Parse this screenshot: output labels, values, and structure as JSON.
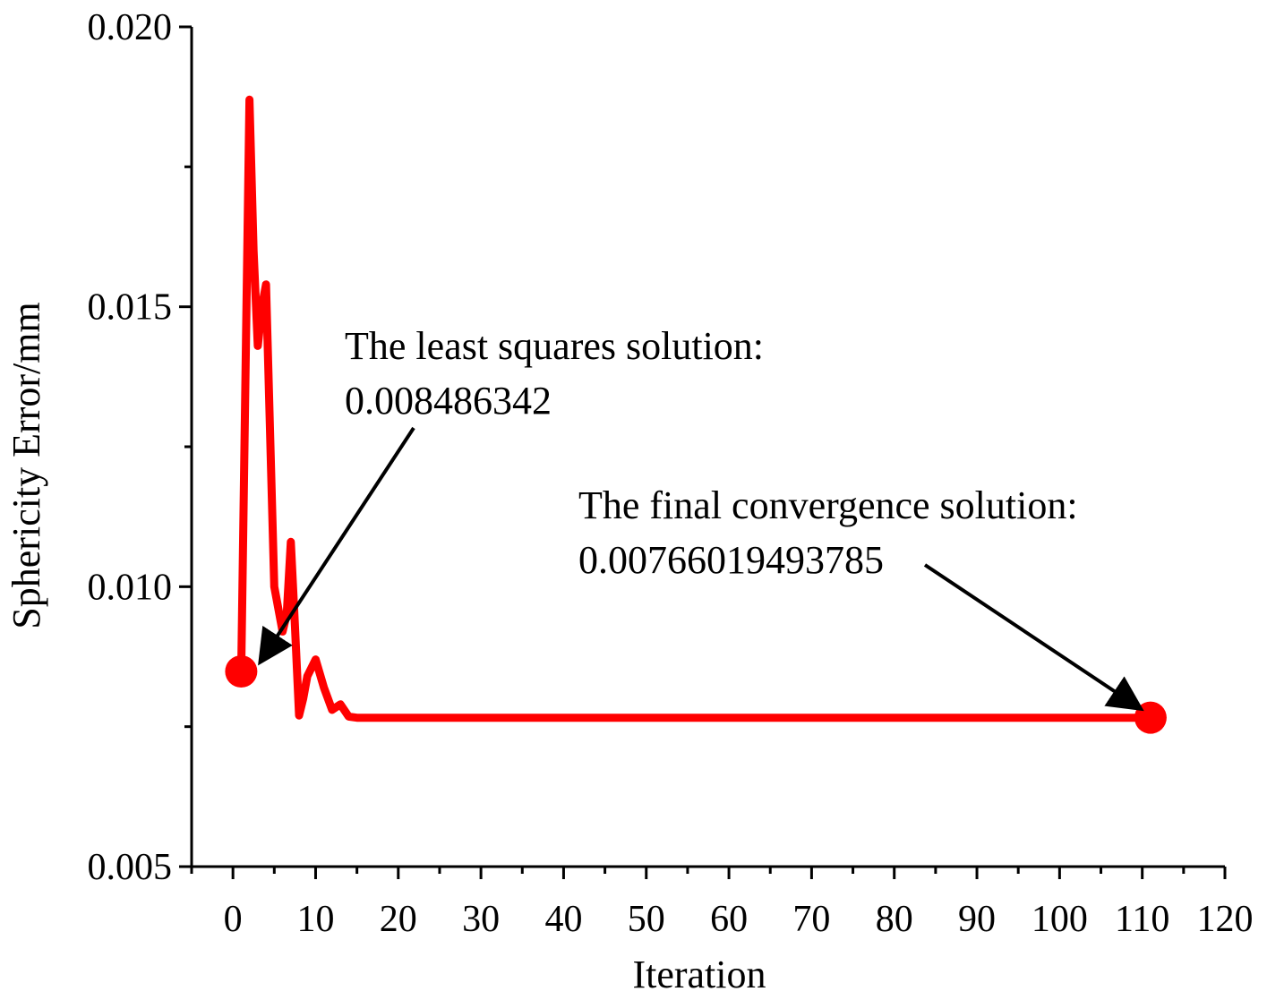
{
  "chart_data": {
    "type": "line",
    "title": "",
    "xlabel": "Iteration",
    "ylabel": "Sphericity Error/mm",
    "xlim": [
      -5,
      120
    ],
    "ylim": [
      0.005,
      0.02
    ],
    "xticks": [
      0,
      10,
      20,
      30,
      40,
      50,
      60,
      70,
      80,
      90,
      100,
      110,
      120
    ],
    "xtick_labels": [
      "0",
      "10",
      "20",
      "30",
      "40",
      "50",
      "60",
      "70",
      "80",
      "90",
      "100",
      "110",
      "120"
    ],
    "yticks": [
      0.005,
      0.01,
      0.015,
      0.02
    ],
    "ytick_labels": [
      "0.005",
      "0.010",
      "0.015",
      "0.020"
    ],
    "grid": false,
    "line_color": "#ff0000",
    "series": [
      {
        "name": "Sphericity Error",
        "x": [
          1,
          2,
          2.5,
          3,
          3.5,
          4,
          5,
          6,
          6.5,
          7,
          7.5,
          8,
          8.5,
          9,
          10,
          11,
          12,
          13,
          14,
          15,
          111
        ],
        "y": [
          0.00849,
          0.0187,
          0.016,
          0.0143,
          0.015,
          0.0154,
          0.01,
          0.0092,
          0.0095,
          0.0108,
          0.0093,
          0.0077,
          0.008,
          0.0084,
          0.0087,
          0.0082,
          0.0078,
          0.0079,
          0.00768,
          0.00766,
          0.00766
        ]
      }
    ],
    "highlight_points": [
      {
        "name": "least-squares",
        "x": 1,
        "y": 0.008486342
      },
      {
        "name": "final-convergence",
        "x": 111,
        "y": 0.00766019493785
      }
    ],
    "annotations": [
      {
        "name": "least-squares-annotation",
        "lines": [
          "The least squares solution:",
          "0.008486342"
        ],
        "points_to": {
          "x": 3.5,
          "y": 0.0087
        }
      },
      {
        "name": "final-convergence-annotation",
        "lines": [
          "The final convergence solution:",
          "0.00766019493785"
        ],
        "points_to": {
          "x": 109.5,
          "y": 0.00785
        }
      }
    ]
  }
}
